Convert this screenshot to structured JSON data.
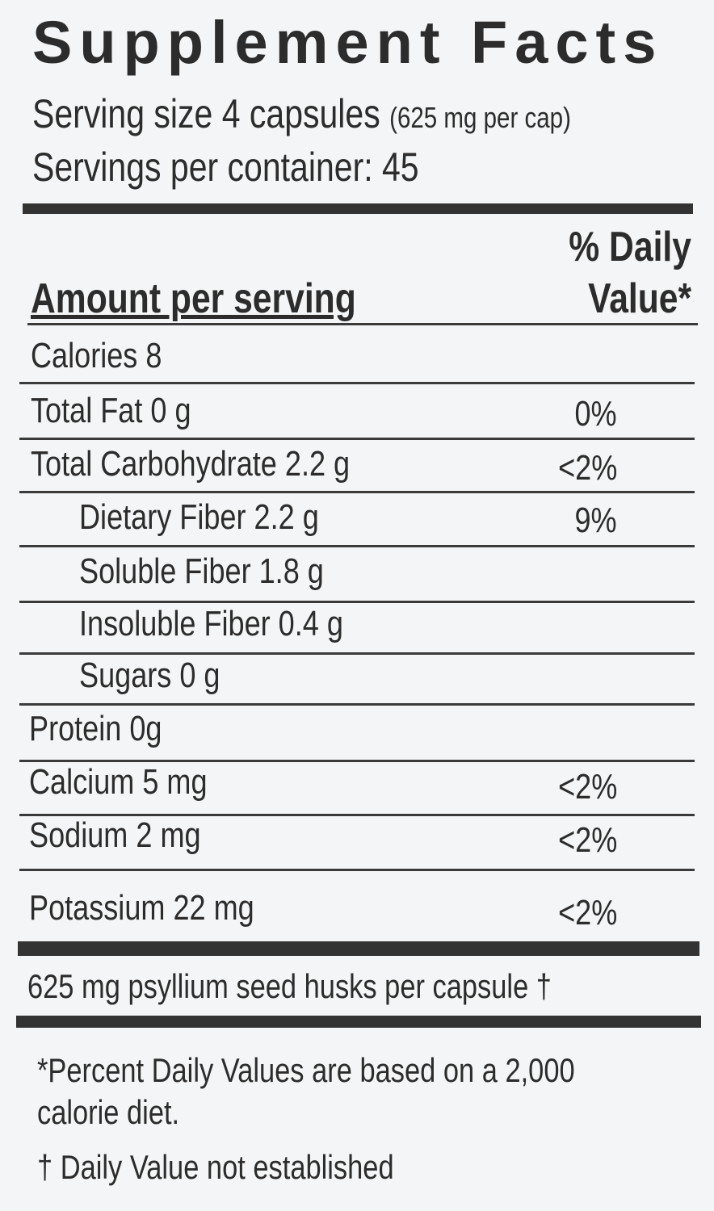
{
  "title": "Supplement Facts",
  "serving_size": "Serving size 4 capsules",
  "serving_note": "(625 mg per cap)",
  "servings_per_container": "Servings  per container: 45",
  "header": {
    "amount": "Amount per serving",
    "dv_line1": "% Daily",
    "dv_line2": "Value*"
  },
  "rows": [
    {
      "label": "Calories  8",
      "dv": ""
    },
    {
      "label": "Total Fat  0 g",
      "dv": "0%"
    },
    {
      "label": "Total Carbohydrate 2.2 g",
      "dv": "<2%"
    },
    {
      "label": "Dietary Fiber 2.2 g",
      "dv": "9%"
    },
    {
      "label": "Soluble Fiber 1.8 g",
      "dv": ""
    },
    {
      "label": "Insoluble Fiber 0.4 g",
      "dv": ""
    },
    {
      "label": "Sugars 0 g",
      "dv": ""
    },
    {
      "label": "Protein 0g",
      "dv": ""
    },
    {
      "label": "Calcium 5 mg",
      "dv": "<2%"
    },
    {
      "label": "Sodium 2 mg",
      "dv": "<2%"
    },
    {
      "label": "Potassium 22 mg",
      "dv": "<2%"
    }
  ],
  "ingredient": "625 mg psyllium seed husks per capsule †",
  "footnotes": {
    "percent_line1": "*Percent Daily Values are based on a 2,000",
    "percent_line2": "calorie diet.",
    "dagger": "† Daily Value not established"
  }
}
